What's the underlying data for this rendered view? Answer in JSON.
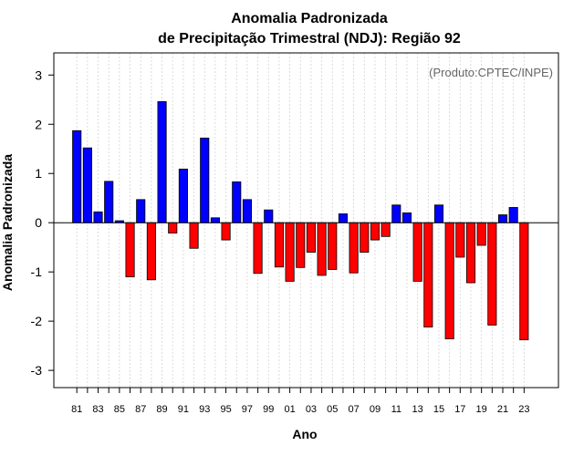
{
  "chart_data": {
    "type": "bar",
    "title_line1": "Anomalia Padronizada",
    "title_line2": "de Precipitação Trimestral (NDJ): Região 92",
    "xlabel": "Ano",
    "ylabel": "Anomalia Padronizada",
    "annotation": "(Produto:CPTEC/INPE)",
    "ylim": [
      -3.35,
      3.45
    ],
    "yticks": [
      -3,
      -2,
      -1,
      0,
      1,
      2,
      3
    ],
    "ytick_labels": [
      "-3",
      "-2",
      "-1",
      "0",
      "1",
      "2",
      "3"
    ],
    "categories": [
      "81",
      "82",
      "83",
      "84",
      "85",
      "86",
      "87",
      "88",
      "89",
      "90",
      "91",
      "92",
      "93",
      "94",
      "95",
      "96",
      "97",
      "98",
      "99",
      "00",
      "01",
      "02",
      "03",
      "04",
      "05",
      "06",
      "07",
      "08",
      "09",
      "10",
      "11",
      "12",
      "13",
      "14",
      "15",
      "16",
      "17",
      "18",
      "19",
      "20",
      "21",
      "22",
      "23"
    ],
    "xtick_labels": [
      "81",
      "",
      "83",
      "",
      "85",
      "",
      "87",
      "",
      "89",
      "",
      "91",
      "",
      "93",
      "",
      "95",
      "",
      "97",
      "",
      "99",
      "",
      "01",
      "",
      "03",
      "",
      "05",
      "",
      "07",
      "",
      "09",
      "",
      "11",
      "",
      "13",
      "",
      "15",
      "",
      "17",
      "",
      "19",
      "",
      "21",
      "",
      "23"
    ],
    "values": [
      1.87,
      1.52,
      0.22,
      0.84,
      0.04,
      -1.1,
      0.47,
      -1.16,
      2.46,
      -0.21,
      1.09,
      -0.52,
      1.72,
      0.1,
      -0.35,
      0.83,
      0.47,
      -1.03,
      0.26,
      -0.9,
      -1.19,
      -0.91,
      -0.6,
      -1.07,
      -0.95,
      0.18,
      -1.02,
      -0.6,
      -0.35,
      -0.28,
      0.36,
      0.2,
      -1.19,
      -2.12,
      0.36,
      -2.36,
      -0.7,
      -1.22,
      -0.46,
      -2.08,
      0.16,
      0.31,
      -2.38
    ],
    "positive_color": "#0000ff",
    "negative_color": "#ff0000",
    "grid": "vertical dotted",
    "annotation_position": "top-right"
  }
}
